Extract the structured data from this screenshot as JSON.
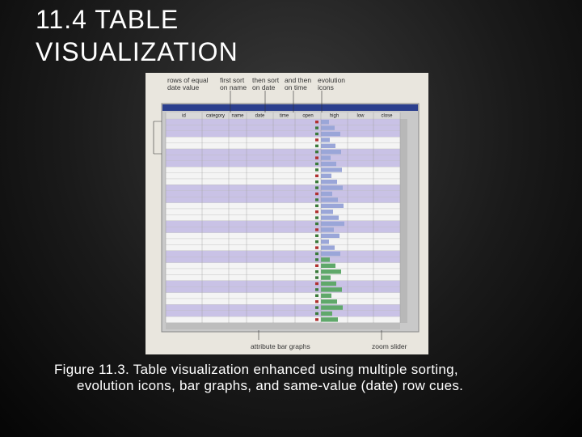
{
  "header": {
    "title": "11.4 TABLE VISUALIZATION"
  },
  "figure": {
    "annotations": {
      "top": [
        "rows of equal date value",
        "first sort on name",
        "then sort on date",
        "and then on time",
        "evolution icons"
      ],
      "bottom": [
        "attribute bar graphs",
        "zoom slider"
      ]
    },
    "table_columns": [
      "id",
      "category",
      "name",
      "date",
      "time",
      "open",
      "high",
      "low",
      "close"
    ]
  },
  "caption": [
    "Figure 11.3. Table visualization enhanced using multiple sorting,",
    "evolution icons, bar graphs, and same-value (date) row cues."
  ]
}
